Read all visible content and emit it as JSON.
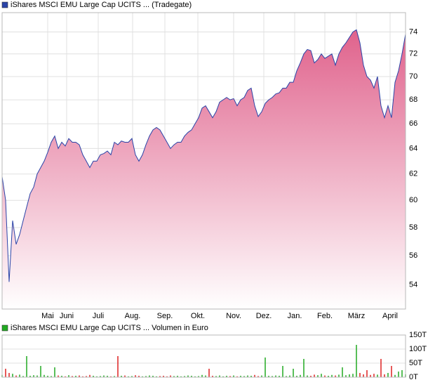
{
  "chart_data": [
    {
      "type": "area",
      "log_scale": true,
      "grid": true,
      "series": [
        {
          "name": "iShares MSCI EMU Large Cap UCITS ... (Tradegate)",
          "color": "#2a44a8",
          "fill_top": "#e0628c",
          "fill_bottom": "#ffffff",
          "values": [
            61.8,
            60,
            54.2,
            58.5,
            56.8,
            57.5,
            58.5,
            59.5,
            60.5,
            61,
            62,
            62.5,
            63,
            63.7,
            64.5,
            65,
            64,
            64.5,
            64.2,
            64.8,
            64.5,
            64.5,
            64.3,
            63.5,
            63,
            62.5,
            63,
            63,
            63.5,
            63.6,
            63.8,
            63.5,
            64.5,
            64.3,
            64.6,
            64.5,
            64.5,
            64.8,
            63.5,
            63,
            63.5,
            64.3,
            65,
            65.5,
            65.7,
            65.5,
            65,
            64.5,
            64,
            64.3,
            64.5,
            64.5,
            65,
            65.3,
            65.5,
            66,
            66.5,
            67.3,
            67.5,
            67,
            66.5,
            67,
            67.8,
            68,
            68.2,
            68,
            68.1,
            67.5,
            68,
            68.2,
            68.8,
            69,
            67.5,
            66.6,
            67,
            67.7,
            68,
            68.2,
            68.5,
            68.6,
            69,
            69,
            69.5,
            69.5,
            70.5,
            71.2,
            72,
            72.4,
            72.3,
            71.2,
            71.5,
            72,
            71.6,
            71.8,
            72,
            71,
            72,
            72.6,
            73,
            73.5,
            74,
            74.2,
            73,
            71,
            70,
            69.7,
            69,
            70,
            67.5,
            66.5,
            67.5,
            66.5,
            69.5,
            70.5,
            72,
            73.8
          ]
        }
      ],
      "xlim": [
        0,
        115
      ],
      "xticks": [
        {
          "value": 13,
          "label": "Mai"
        },
        {
          "value": 18.4,
          "label": "Juni"
        },
        {
          "value": 27.4,
          "label": "Juli"
        },
        {
          "value": 37.2,
          "label": "Aug."
        },
        {
          "value": 46.4,
          "label": "Sep."
        },
        {
          "value": 55.8,
          "label": "Okt."
        },
        {
          "value": 66,
          "label": "Nov."
        },
        {
          "value": 74.6,
          "label": "Dez."
        },
        {
          "value": 83.4,
          "label": "Jan."
        },
        {
          "value": 92,
          "label": "Feb."
        },
        {
          "value": 101,
          "label": "März"
        },
        {
          "value": 110.6,
          "label": "April"
        }
      ],
      "ylim": [
        52.4,
        75.8
      ],
      "yticks": [
        54,
        56,
        58,
        60,
        62,
        64,
        66,
        68,
        70,
        72,
        74
      ]
    },
    {
      "type": "bar",
      "grid": true,
      "up_color": "#22aa22",
      "down_color": "#dd2222",
      "series": [
        {
          "name": "iShares MSCI EMU Large Cap UCITS ... Volumen in Euro",
          "color": "#22aa22",
          "values": [
            8000,
            30000,
            15000,
            12000,
            6000,
            9000,
            4000,
            75000,
            5000,
            7000,
            6000,
            40000,
            8000,
            5000,
            4000,
            35000,
            6000,
            5000,
            3000,
            7000,
            4000,
            5000,
            6000,
            3000,
            4000,
            8000,
            5000,
            3000,
            4000,
            6000,
            5000,
            3000,
            4000,
            75000,
            5000,
            6000,
            3000,
            4000,
            7000,
            5000,
            3000,
            4000,
            6000,
            5000,
            3000,
            4000,
            5000,
            3000,
            6000,
            4000,
            5000,
            3000,
            4000,
            6000,
            5000,
            3000,
            4000,
            8000,
            6000,
            30000,
            5000,
            4000,
            6000,
            3000,
            5000,
            4000,
            6000,
            3000,
            5000,
            4000,
            6000,
            5000,
            8000,
            4000,
            6000,
            70000,
            5000,
            4000,
            6000,
            5000,
            40000,
            4000,
            6000,
            30000,
            5000,
            8000,
            65000,
            6000,
            5000,
            9000,
            7000,
            12000,
            6000,
            5000,
            8000,
            6000,
            9000,
            35000,
            7000,
            10000,
            12000,
            115000,
            15000,
            10000,
            25000,
            8000,
            12000,
            9000,
            65000,
            10000,
            15000,
            40000,
            8000,
            20000,
            25000,
            10000
          ]
        }
      ],
      "xlim": [
        0,
        115
      ],
      "ylim": [
        0,
        150000
      ],
      "yticks": [
        {
          "value": 0,
          "label": "0T"
        },
        {
          "value": 50000,
          "label": "50T"
        },
        {
          "value": 100000,
          "label": "100T"
        },
        {
          "value": 150000,
          "label": "150T"
        }
      ]
    }
  ]
}
